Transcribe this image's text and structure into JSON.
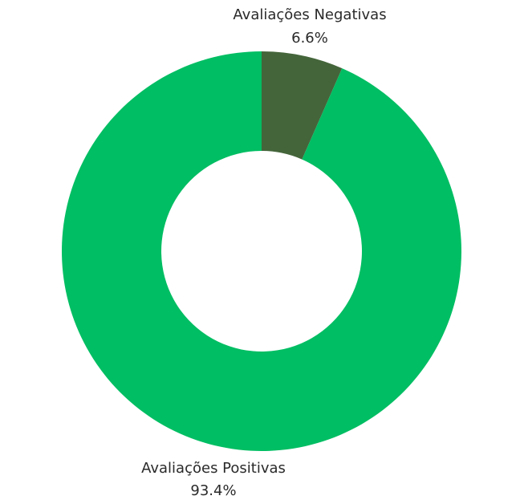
{
  "chart_data": {
    "type": "pie",
    "donut": true,
    "slices": [
      {
        "label": "Avaliações Negativas",
        "value": 6.6,
        "percent_label": "6.6%",
        "color": "#44653a"
      },
      {
        "label": "Avaliações Positivas",
        "value": 93.4,
        "percent_label": "93.4%",
        "color": "#00be63"
      }
    ],
    "start_angle": "12 o'clock",
    "direction": "clockwise",
    "legend": "none",
    "label_placement": "outside"
  }
}
